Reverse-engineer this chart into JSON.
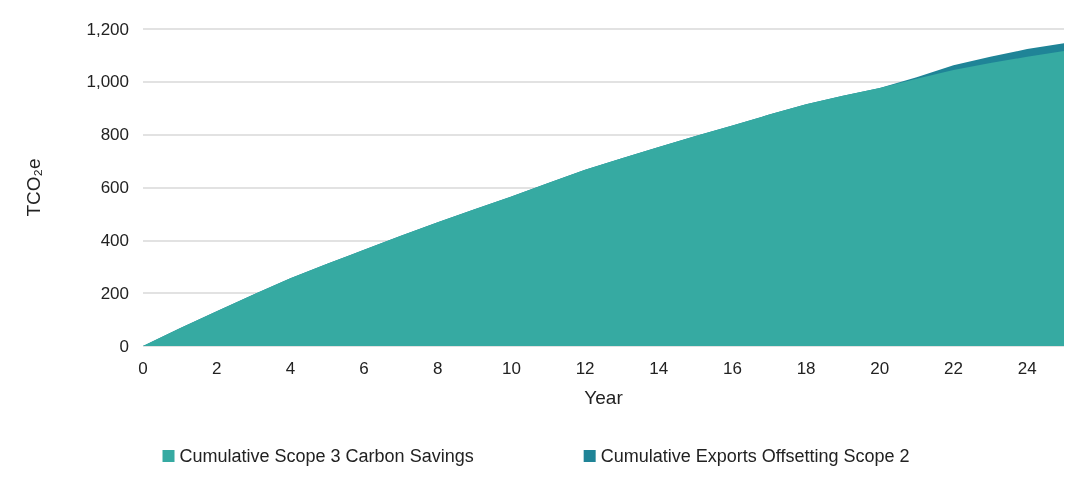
{
  "chart_data": {
    "type": "area",
    "stacked": true,
    "xlabel": "Year",
    "ylabel": "TCO₂e",
    "x": [
      0,
      1,
      2,
      3,
      4,
      5,
      6,
      7,
      8,
      9,
      10,
      11,
      12,
      13,
      14,
      15,
      16,
      17,
      18,
      19,
      20,
      21,
      22,
      23,
      24,
      25
    ],
    "series": [
      {
        "name": "Cumulative Scope 3 Carbon Savings",
        "color": "#36aaa2",
        "values": [
          0,
          67,
          132,
          195,
          256,
          311,
          364,
          417,
          468,
          518,
          566,
          617,
          667,
          711,
          753,
          795,
          835,
          876,
          915,
          947,
          977,
          1012,
          1045,
          1071,
          1095,
          1117
        ]
      },
      {
        "name": "Cumulative Exports Offsetting Scope 2",
        "color": "#1f8497",
        "values": [
          0,
          0,
          0,
          0,
          0,
          0,
          0,
          0,
          0,
          0,
          0,
          0,
          0,
          0,
          0,
          0,
          0,
          0,
          0,
          0,
          0,
          5,
          18,
          24,
          29,
          29
        ]
      }
    ],
    "xlim": [
      0,
      25
    ],
    "xticks": [
      0,
      2,
      4,
      6,
      8,
      10,
      12,
      14,
      16,
      18,
      20,
      22,
      24
    ],
    "ylim": [
      0,
      1200
    ],
    "yticks": [
      0,
      200,
      400,
      600,
      800,
      {
        "value": 1000,
        "label": "1,000"
      },
      {
        "value": 1200,
        "label": "1,200"
      }
    ],
    "grid": "y",
    "legend": "bottom"
  }
}
